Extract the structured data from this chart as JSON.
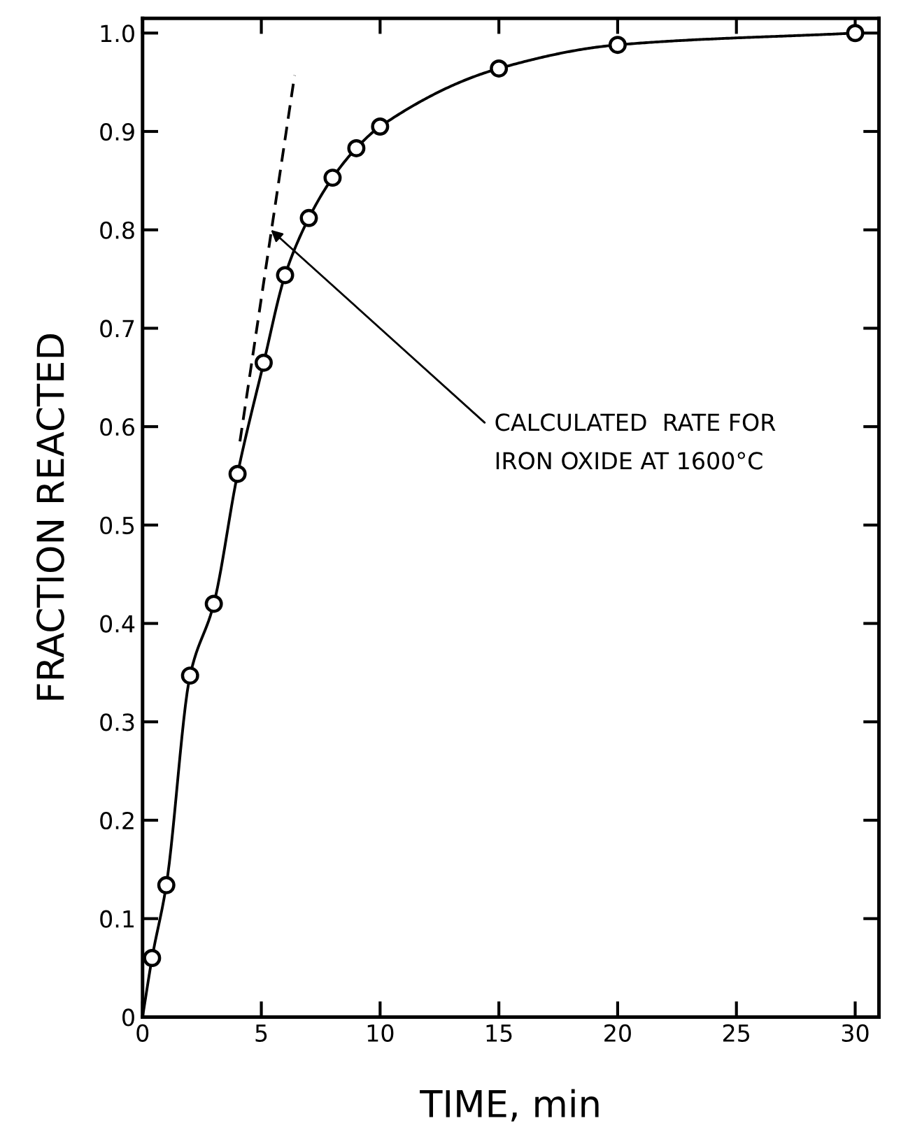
{
  "chart_data": {
    "type": "scatter",
    "xlabel": "TIME, min",
    "ylabel": "FRACTION REACTED",
    "xlim": [
      0,
      31
    ],
    "ylim": [
      0,
      1.015
    ],
    "xticks": [
      0,
      5,
      10,
      15,
      20,
      25,
      30
    ],
    "yticks": [
      0,
      0.1,
      0.2,
      0.3,
      0.4,
      0.5,
      0.6,
      0.7,
      0.8,
      0.9,
      {
        "value": 1,
        "label": "1.0"
      }
    ],
    "grid": false,
    "series": [
      {
        "type": "line",
        "color": "#000000",
        "marker": "none",
        "line_style": "solid",
        "x": [
          0,
          0.4,
          1,
          2,
          3,
          4,
          5.1,
          6,
          7,
          8,
          9,
          10,
          15,
          20,
          30
        ],
        "values": [
          0,
          0.06,
          0.134,
          0.347,
          0.42,
          0.552,
          0.665,
          0.754,
          0.812,
          0.853,
          0.883,
          0.905,
          0.964,
          0.988,
          1.0
        ]
      },
      {
        "color": "#000000",
        "marker": "circle",
        "x": [
          0.4,
          1,
          2,
          3,
          4,
          5.1,
          6,
          7,
          8,
          9,
          10,
          15,
          20,
          30
        ],
        "values": [
          0.06,
          0.134,
          0.347,
          0.42,
          0.552,
          0.665,
          0.754,
          0.812,
          0.853,
          0.883,
          0.905,
          0.964,
          0.988,
          1.0
        ]
      },
      {
        "type": "line",
        "color": "#000000",
        "marker": "none",
        "line_style": "dashed",
        "x": [
          4.1,
          6.4
        ],
        "values": [
          0.585,
          0.957
        ]
      }
    ],
    "annotations": [
      {
        "text": "CALCULATED  RATE FOR\nIRON OXIDE AT 1600°C",
        "x": 5.4,
        "y": 0.8
      }
    ]
  }
}
